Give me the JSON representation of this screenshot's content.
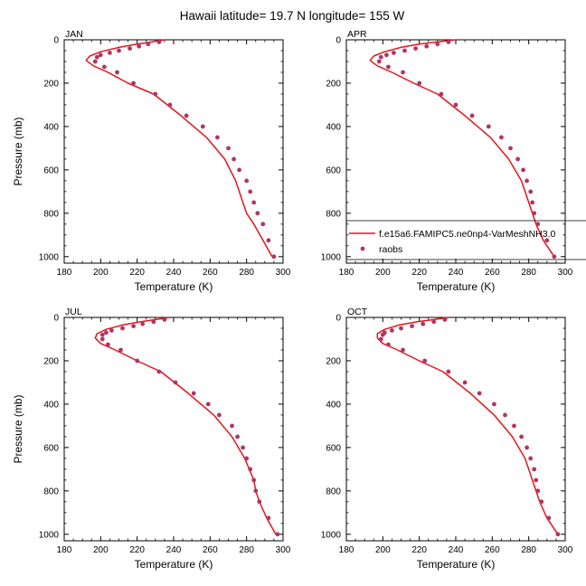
{
  "figure": {
    "title": "Hawaii  latitude= 19.7 N longitude= 155 W"
  },
  "legend": {
    "model_label": "f.e15a6.FAMIPC5.ne0np4-VarMeshNH3.0",
    "obs_label": "raobs",
    "placement": "right of APR panel, near bottom"
  },
  "colors": {
    "model_line": "#e8141b",
    "obs_marker": "#b03565",
    "axes": "#000000"
  },
  "chart_data": [
    {
      "type": "line",
      "panel": "JAN",
      "xlabel": "Temperature (K)",
      "ylabel": "Pressure (mb)",
      "xlim": [
        180,
        300
      ],
      "ylim": [
        1030,
        0
      ],
      "y_inverted": true,
      "xticks": [
        180,
        200,
        220,
        240,
        260,
        280,
        300
      ],
      "yticks": [
        0,
        200,
        400,
        600,
        800,
        1000
      ],
      "grid": false,
      "series": [
        {
          "kind": "line",
          "x": [
            235,
            228,
            220,
            210,
            200,
            194,
            192,
            196,
            204,
            215,
            229,
            244,
            258,
            268,
            274,
            278,
            280,
            284,
            289,
            294
          ],
          "y": [
            0,
            10,
            20,
            35,
            55,
            75,
            95,
            120,
            150,
            200,
            250,
            350,
            450,
            550,
            650,
            750,
            800,
            850,
            925,
            1000
          ]
        },
        {
          "kind": "scatter",
          "x": [
            232,
            226,
            221,
            216,
            210,
            205,
            200,
            198,
            197,
            202,
            209,
            218,
            230,
            238,
            247,
            256,
            264,
            270,
            273,
            276,
            280,
            282,
            284,
            286,
            289,
            292,
            295
          ],
          "y": [
            10,
            20,
            30,
            40,
            50,
            60,
            70,
            80,
            100,
            125,
            150,
            200,
            250,
            300,
            350,
            400,
            450,
            500,
            550,
            600,
            650,
            700,
            750,
            800,
            850,
            925,
            1000
          ]
        }
      ]
    },
    {
      "type": "line",
      "panel": "APR",
      "xlabel": "Temperature (K)",
      "ylabel": "",
      "xlim": [
        180,
        300
      ],
      "ylim": [
        1030,
        0
      ],
      "y_inverted": true,
      "xticks": [
        180,
        200,
        220,
        240,
        260,
        280,
        300
      ],
      "yticks": [
        0,
        200,
        400,
        600,
        800,
        1000
      ],
      "grid": false,
      "series": [
        {
          "kind": "line",
          "x": [
            240,
            230,
            220,
            210,
            201,
            195,
            193,
            197,
            205,
            217,
            230,
            245,
            259,
            269,
            276,
            280,
            282,
            284,
            288,
            294
          ],
          "y": [
            0,
            10,
            20,
            35,
            55,
            75,
            95,
            120,
            150,
            200,
            250,
            350,
            450,
            550,
            650,
            750,
            800,
            850,
            925,
            1000
          ]
        },
        {
          "kind": "scatter",
          "x": [
            236,
            230,
            224,
            218,
            212,
            206,
            202,
            199,
            198,
            203,
            211,
            220,
            232,
            240,
            249,
            258,
            265,
            270,
            274,
            277,
            279,
            281,
            282,
            283,
            285,
            290,
            294
          ],
          "y": [
            10,
            20,
            30,
            40,
            50,
            60,
            70,
            80,
            100,
            125,
            150,
            200,
            250,
            300,
            350,
            400,
            450,
            500,
            550,
            600,
            650,
            700,
            750,
            800,
            850,
            925,
            1000
          ]
        }
      ]
    },
    {
      "type": "line",
      "panel": "JUL",
      "xlabel": "Temperature (K)",
      "ylabel": "Pressure (mb)",
      "xlim": [
        180,
        300
      ],
      "ylim": [
        1030,
        0
      ],
      "y_inverted": true,
      "xticks": [
        180,
        200,
        220,
        240,
        260,
        280,
        300
      ],
      "yticks": [
        0,
        200,
        400,
        600,
        800,
        1000
      ],
      "grid": false,
      "series": [
        {
          "kind": "line",
          "x": [
            238,
            230,
            222,
            212,
            203,
            198,
            197,
            200,
            208,
            220,
            233,
            248,
            262,
            272,
            279,
            284,
            285,
            287,
            291,
            296
          ],
          "y": [
            0,
            10,
            20,
            35,
            55,
            75,
            95,
            120,
            150,
            200,
            250,
            350,
            450,
            550,
            650,
            750,
            800,
            850,
            925,
            1000
          ]
        },
        {
          "kind": "scatter",
          "x": [
            235,
            229,
            223,
            218,
            212,
            206,
            203,
            201,
            201,
            204,
            211,
            220,
            232,
            241,
            251,
            259,
            265,
            272,
            275,
            278,
            280,
            282,
            284,
            285,
            287,
            292,
            297
          ],
          "y": [
            10,
            20,
            30,
            40,
            50,
            60,
            70,
            80,
            100,
            125,
            150,
            200,
            250,
            300,
            350,
            400,
            450,
            500,
            550,
            600,
            650,
            700,
            750,
            800,
            850,
            925,
            1000
          ]
        }
      ]
    },
    {
      "type": "line",
      "panel": "OCT",
      "xlabel": "Temperature (K)",
      "ylabel": "",
      "xlim": [
        180,
        300
      ],
      "ylim": [
        1030,
        0
      ],
      "y_inverted": true,
      "xticks": [
        180,
        200,
        220,
        240,
        260,
        280,
        300
      ],
      "yticks": [
        0,
        200,
        400,
        600,
        800,
        1000
      ],
      "grid": false,
      "series": [
        {
          "kind": "line",
          "x": [
            236,
            228,
            219,
            209,
            201,
            197,
            197,
            200,
            208,
            220,
            233,
            248,
            261,
            271,
            278,
            282,
            284,
            286,
            290,
            296
          ],
          "y": [
            0,
            10,
            20,
            35,
            55,
            75,
            95,
            120,
            150,
            200,
            250,
            350,
            450,
            550,
            650,
            750,
            800,
            850,
            925,
            1000
          ]
        },
        {
          "kind": "scatter",
          "x": [
            234,
            228,
            222,
            216,
            210,
            205,
            201,
            200,
            199,
            203,
            211,
            223,
            236,
            245,
            253,
            261,
            267,
            272,
            276,
            279,
            281,
            283,
            284,
            285,
            287,
            291,
            296
          ],
          "y": [
            10,
            20,
            30,
            40,
            50,
            60,
            70,
            80,
            100,
            125,
            150,
            200,
            250,
            300,
            350,
            400,
            450,
            500,
            550,
            600,
            650,
            700,
            750,
            800,
            850,
            925,
            1000
          ]
        }
      ]
    }
  ]
}
